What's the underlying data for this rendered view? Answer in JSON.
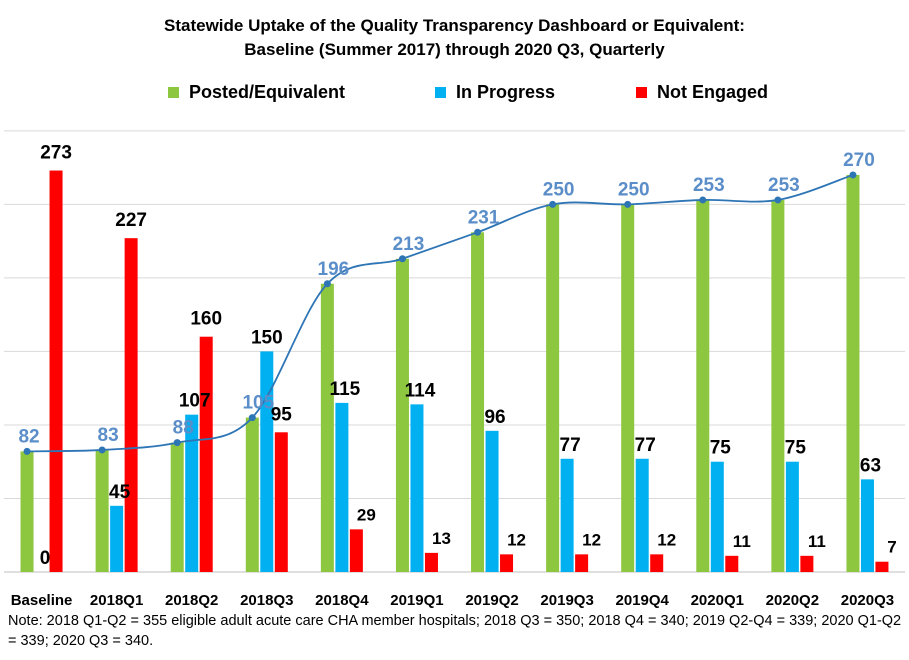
{
  "chart_data": {
    "type": "bar",
    "title": "Statewide Uptake of the Quality Transparency Dashboard or Equivalent:",
    "subtitle": "Baseline (Summer 2017) through 2020 Q3, Quarterly",
    "categories": [
      "Baseline",
      "2018Q1",
      "2018Q2",
      "2018Q3",
      "2018Q4",
      "2019Q1",
      "2019Q2",
      "2019Q3",
      "2019Q4",
      "2020Q1",
      "2020Q2",
      "2020Q3"
    ],
    "series": [
      {
        "name": "Posted/Equivalent",
        "color": "#8DC63F",
        "values": [
          82,
          83,
          88,
          105,
          196,
          213,
          231,
          250,
          250,
          253,
          253,
          270
        ]
      },
      {
        "name": "In Progress",
        "color": "#00B0F0",
        "values": [
          0,
          45,
          107,
          150,
          115,
          114,
          96,
          77,
          77,
          75,
          75,
          63
        ]
      },
      {
        "name": "Not Engaged",
        "color": "#FF0000",
        "values": [
          273,
          227,
          160,
          95,
          29,
          13,
          12,
          12,
          12,
          11,
          11,
          7
        ]
      }
    ],
    "trend_line": {
      "series": "Posted/Equivalent",
      "color": "#2E75B6",
      "label_color": "#5B8EC9"
    },
    "ylim": [
      0,
      340
    ],
    "gridlines": [
      0,
      50,
      100,
      150,
      200,
      250,
      300
    ],
    "grid": true,
    "legend": "top",
    "xlabel": "",
    "ylabel": ""
  },
  "note": "Note: 2018 Q1-Q2 = 355 eligible adult acute care CHA member hospitals; 2018 Q3 = 350; 2018 Q4 = 340; 2019 Q2-Q4 = 339; 2020 Q1-Q2 = 339; 2020 Q3 = 340."
}
